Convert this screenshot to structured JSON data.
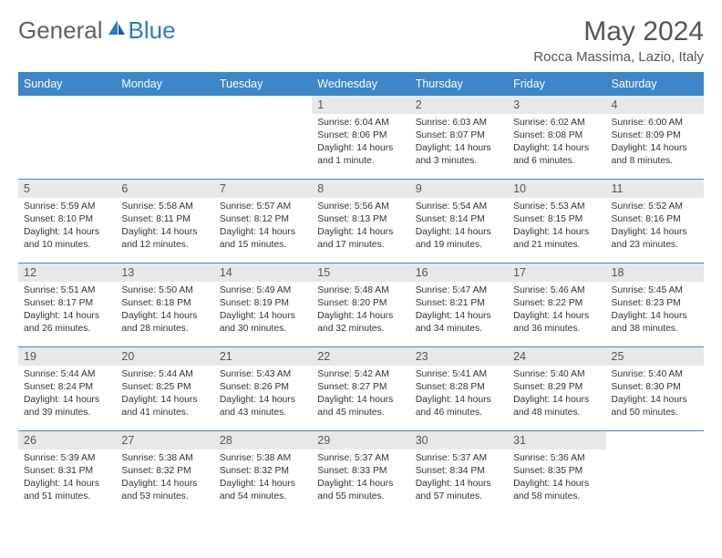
{
  "brand": {
    "part1": "General",
    "part2": "Blue"
  },
  "title": "May 2024",
  "location": "Rocca Massima, Lazio, Italy",
  "colors": {
    "header_bg": "#3b87c8",
    "header_fg": "#ffffff",
    "daynum_bg": "#e8e8e8",
    "rule": "#3b87c8",
    "logo_gray": "#616161",
    "logo_blue": "#2b7bbf"
  },
  "weekdays": [
    "Sunday",
    "Monday",
    "Tuesday",
    "Wednesday",
    "Thursday",
    "Friday",
    "Saturday"
  ],
  "weeks": [
    [
      null,
      null,
      null,
      {
        "n": "1",
        "sr": "6:04 AM",
        "ss": "8:06 PM",
        "dl": "14 hours and 1 minute."
      },
      {
        "n": "2",
        "sr": "6:03 AM",
        "ss": "8:07 PM",
        "dl": "14 hours and 3 minutes."
      },
      {
        "n": "3",
        "sr": "6:02 AM",
        "ss": "8:08 PM",
        "dl": "14 hours and 6 minutes."
      },
      {
        "n": "4",
        "sr": "6:00 AM",
        "ss": "8:09 PM",
        "dl": "14 hours and 8 minutes."
      }
    ],
    [
      {
        "n": "5",
        "sr": "5:59 AM",
        "ss": "8:10 PM",
        "dl": "14 hours and 10 minutes."
      },
      {
        "n": "6",
        "sr": "5:58 AM",
        "ss": "8:11 PM",
        "dl": "14 hours and 12 minutes."
      },
      {
        "n": "7",
        "sr": "5:57 AM",
        "ss": "8:12 PM",
        "dl": "14 hours and 15 minutes."
      },
      {
        "n": "8",
        "sr": "5:56 AM",
        "ss": "8:13 PM",
        "dl": "14 hours and 17 minutes."
      },
      {
        "n": "9",
        "sr": "5:54 AM",
        "ss": "8:14 PM",
        "dl": "14 hours and 19 minutes."
      },
      {
        "n": "10",
        "sr": "5:53 AM",
        "ss": "8:15 PM",
        "dl": "14 hours and 21 minutes."
      },
      {
        "n": "11",
        "sr": "5:52 AM",
        "ss": "8:16 PM",
        "dl": "14 hours and 23 minutes."
      }
    ],
    [
      {
        "n": "12",
        "sr": "5:51 AM",
        "ss": "8:17 PM",
        "dl": "14 hours and 26 minutes."
      },
      {
        "n": "13",
        "sr": "5:50 AM",
        "ss": "8:18 PM",
        "dl": "14 hours and 28 minutes."
      },
      {
        "n": "14",
        "sr": "5:49 AM",
        "ss": "8:19 PM",
        "dl": "14 hours and 30 minutes."
      },
      {
        "n": "15",
        "sr": "5:48 AM",
        "ss": "8:20 PM",
        "dl": "14 hours and 32 minutes."
      },
      {
        "n": "16",
        "sr": "5:47 AM",
        "ss": "8:21 PM",
        "dl": "14 hours and 34 minutes."
      },
      {
        "n": "17",
        "sr": "5:46 AM",
        "ss": "8:22 PM",
        "dl": "14 hours and 36 minutes."
      },
      {
        "n": "18",
        "sr": "5:45 AM",
        "ss": "8:23 PM",
        "dl": "14 hours and 38 minutes."
      }
    ],
    [
      {
        "n": "19",
        "sr": "5:44 AM",
        "ss": "8:24 PM",
        "dl": "14 hours and 39 minutes."
      },
      {
        "n": "20",
        "sr": "5:44 AM",
        "ss": "8:25 PM",
        "dl": "14 hours and 41 minutes."
      },
      {
        "n": "21",
        "sr": "5:43 AM",
        "ss": "8:26 PM",
        "dl": "14 hours and 43 minutes."
      },
      {
        "n": "22",
        "sr": "5:42 AM",
        "ss": "8:27 PM",
        "dl": "14 hours and 45 minutes."
      },
      {
        "n": "23",
        "sr": "5:41 AM",
        "ss": "8:28 PM",
        "dl": "14 hours and 46 minutes."
      },
      {
        "n": "24",
        "sr": "5:40 AM",
        "ss": "8:29 PM",
        "dl": "14 hours and 48 minutes."
      },
      {
        "n": "25",
        "sr": "5:40 AM",
        "ss": "8:30 PM",
        "dl": "14 hours and 50 minutes."
      }
    ],
    [
      {
        "n": "26",
        "sr": "5:39 AM",
        "ss": "8:31 PM",
        "dl": "14 hours and 51 minutes."
      },
      {
        "n": "27",
        "sr": "5:38 AM",
        "ss": "8:32 PM",
        "dl": "14 hours and 53 minutes."
      },
      {
        "n": "28",
        "sr": "5:38 AM",
        "ss": "8:32 PM",
        "dl": "14 hours and 54 minutes."
      },
      {
        "n": "29",
        "sr": "5:37 AM",
        "ss": "8:33 PM",
        "dl": "14 hours and 55 minutes."
      },
      {
        "n": "30",
        "sr": "5:37 AM",
        "ss": "8:34 PM",
        "dl": "14 hours and 57 minutes."
      },
      {
        "n": "31",
        "sr": "5:36 AM",
        "ss": "8:35 PM",
        "dl": "14 hours and 58 minutes."
      },
      null
    ]
  ],
  "labels": {
    "sunrise": "Sunrise: ",
    "sunset": "Sunset: ",
    "daylight": "Daylight: "
  }
}
